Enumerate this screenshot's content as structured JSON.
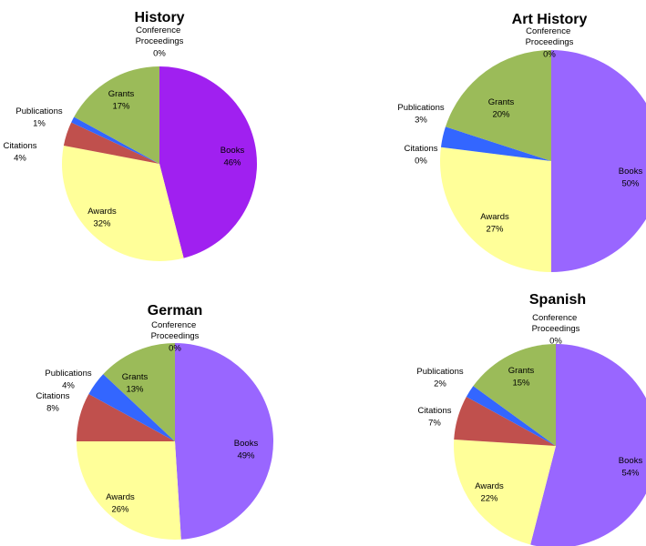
{
  "chart_data": [
    {
      "type": "pie",
      "title": "History",
      "categories": [
        "Books",
        "Awards",
        "Citations",
        "Publications",
        "Grants",
        "Conference Proceedings"
      ],
      "values": [
        46,
        32,
        4,
        1,
        17,
        0
      ],
      "value_labels": [
        "46%",
        "32%",
        "4%",
        "1%",
        "17%",
        "0%"
      ],
      "colors": [
        "#a020f0",
        "#ffff99",
        "#c0504d",
        "#3366ff",
        "#9bbb59",
        "#4f81bd"
      ]
    },
    {
      "type": "pie",
      "title": "Art History",
      "categories": [
        "Books",
        "Awards",
        "Citations",
        "Publications",
        "Grants",
        "Conference Proceedings"
      ],
      "values": [
        50,
        27,
        0,
        3,
        20,
        0
      ],
      "value_labels": [
        "50%",
        "27%",
        "0%",
        "3%",
        "20%",
        "0%"
      ],
      "colors": [
        "#9966ff",
        "#ffff99",
        "#c0504d",
        "#3366ff",
        "#9bbb59",
        "#4f81bd"
      ]
    },
    {
      "type": "pie",
      "title": "German",
      "categories": [
        "Books",
        "Awards",
        "Citations",
        "Publications",
        "Grants",
        "Conference Proceedings"
      ],
      "values": [
        49,
        26,
        8,
        4,
        13,
        0
      ],
      "value_labels": [
        "49%",
        "26%",
        "8%",
        "4%",
        "13%",
        "0%"
      ],
      "colors": [
        "#9966ff",
        "#ffff99",
        "#c0504d",
        "#3366ff",
        "#9bbb59",
        "#4f81bd"
      ]
    },
    {
      "type": "pie",
      "title": "Spanish",
      "categories": [
        "Books",
        "Awards",
        "Citations",
        "Publications",
        "Grants",
        "Conference Proceedings"
      ],
      "values": [
        54,
        22,
        7,
        2,
        15,
        0
      ],
      "value_labels": [
        "54%",
        "22%",
        "7%",
        "2%",
        "15%",
        "0%"
      ],
      "colors": [
        "#9966ff",
        "#ffff99",
        "#c0504d",
        "#3366ff",
        "#9bbb59",
        "#4f81bd"
      ]
    }
  ]
}
